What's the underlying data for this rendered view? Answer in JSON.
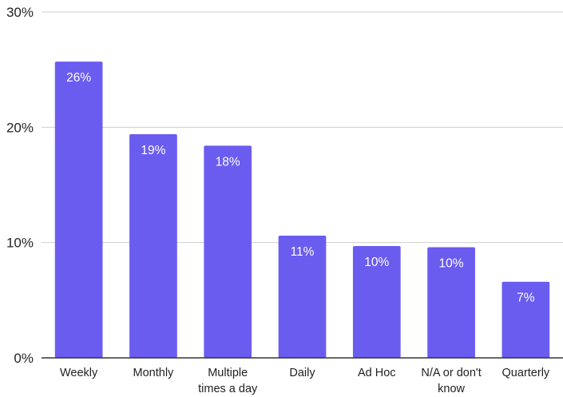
{
  "chart_data": {
    "type": "bar",
    "title": "",
    "xlabel": "",
    "ylabel": "",
    "categories": [
      [
        "Weekly"
      ],
      [
        "Monthly"
      ],
      [
        "Multiple",
        "times a day"
      ],
      [
        "Daily"
      ],
      [
        "Ad Hoc"
      ],
      [
        "N/A or don't",
        "know"
      ],
      [
        "Quarterly"
      ]
    ],
    "values": [
      25.7,
      19.4,
      18.4,
      10.6,
      9.7,
      9.6,
      6.6
    ],
    "data_labels": [
      "26%",
      "19%",
      "18%",
      "11%",
      "10%",
      "10%",
      "7%"
    ],
    "ylim": [
      0,
      30
    ],
    "yticks": [
      0,
      10,
      20,
      30
    ],
    "ytick_labels": [
      "0%",
      "10%",
      "20%",
      "30%"
    ],
    "grid": true,
    "legend": "none",
    "colors": {
      "bar": "#6b5cf0"
    }
  }
}
